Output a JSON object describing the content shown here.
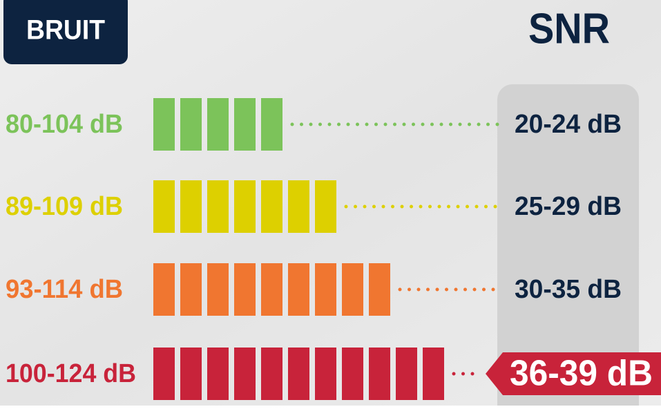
{
  "header": {
    "noise_title": "BRUIT",
    "snr_title": "SNR"
  },
  "rows": [
    {
      "noise": "80-104 dB",
      "snr": "20-24 dB"
    },
    {
      "noise": "89-109 dB",
      "snr": "25-29 dB"
    },
    {
      "noise": "93-114 dB",
      "snr": "30-35 dB"
    },
    {
      "noise": "100-124 dB",
      "snr": "36-39 dB"
    }
  ]
}
